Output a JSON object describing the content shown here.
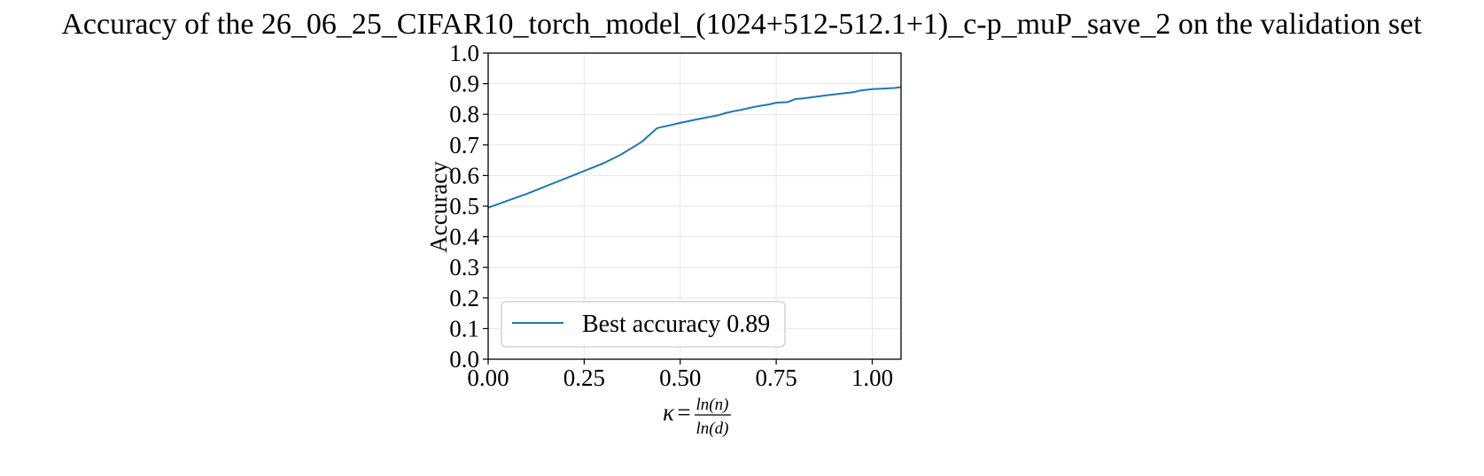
{
  "chart_data": {
    "type": "line",
    "title": "Accuracy of the 26_06_25_CIFAR10_torch_model_(1024+512-512.1+1)_c-p_muP_save_2 on the validation set",
    "xlabel": {
      "symbol": "κ",
      "equals": "=",
      "numerator": "ln(n)",
      "denominator": "ln(d)"
    },
    "ylabel": "Accuracy",
    "xlim": [
      0,
      1.075
    ],
    "ylim": [
      0,
      1.0
    ],
    "xticks": [
      "0.00",
      "0.25",
      "0.50",
      "0.75",
      "1.00"
    ],
    "xtick_values": [
      0,
      0.25,
      0.5,
      0.75,
      1.0
    ],
    "yticks": [
      "0.0",
      "0.1",
      "0.2",
      "0.3",
      "0.4",
      "0.5",
      "0.6",
      "0.7",
      "0.8",
      "0.9",
      "1.0"
    ],
    "ytick_values": [
      0,
      0.1,
      0.2,
      0.3,
      0.4,
      0.5,
      0.6,
      0.7,
      0.8,
      0.9,
      1.0
    ],
    "grid": true,
    "legend_position": "lower-left",
    "series": [
      {
        "name": "Best accuracy 0.89",
        "color": "#1f77b4",
        "x": [
          0.0,
          0.1,
          0.2,
          0.3,
          0.345,
          0.4,
          0.44,
          0.5,
          0.55,
          0.6,
          0.62,
          0.64,
          0.66,
          0.7,
          0.73,
          0.75,
          0.78,
          0.8,
          0.82,
          0.85,
          0.88,
          0.9,
          0.92,
          0.95,
          0.97,
          1.0,
          1.03,
          1.06,
          1.075
        ],
        "y": [
          0.495,
          0.54,
          0.59,
          0.64,
          0.668,
          0.71,
          0.755,
          0.772,
          0.785,
          0.797,
          0.805,
          0.81,
          0.815,
          0.826,
          0.832,
          0.838,
          0.84,
          0.85,
          0.852,
          0.857,
          0.862,
          0.865,
          0.868,
          0.872,
          0.878,
          0.882,
          0.884,
          0.886,
          0.889
        ]
      }
    ]
  }
}
